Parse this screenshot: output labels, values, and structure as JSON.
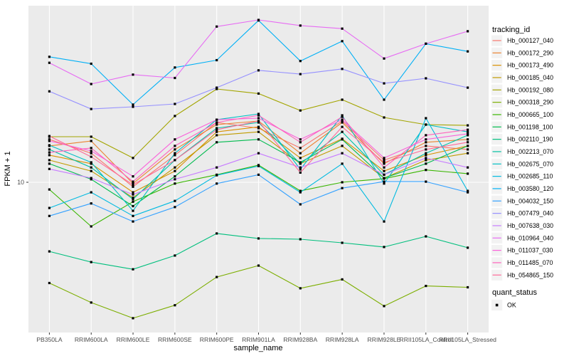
{
  "window": {
    "title": "FPKM expression line plot"
  },
  "chart_data": {
    "type": "line",
    "title": "",
    "xlabel": "sample_name",
    "ylabel": "FPKM + 1",
    "y_scale": "log10",
    "ybreaks": [
      10
    ],
    "y_tick_labels": [
      "10"
    ],
    "ylim": [
      0.93,
      174
    ],
    "grid": true,
    "panel_background": "#EBEBEB",
    "gridline_color": "#FFFFFF",
    "point_color": "#000000",
    "point_shape": "square",
    "categories": [
      "PB350LA",
      "RRIM600LA",
      "RRIM600LE",
      "RRIM600SE",
      "RRIM600PE",
      "RRIM901LA",
      "RRIM928BA",
      "RRIM928LA",
      "RRIM928LE",
      "RRII105LA_Control",
      "RRII105LA_Stressed"
    ],
    "legend": {
      "title": "tracking_id",
      "position": "right"
    },
    "legend2": {
      "title": "quant_status",
      "items": [
        {
          "label": "OK",
          "marker": "black-square",
          "color": "#000000"
        }
      ]
    },
    "series": [
      {
        "name": "Hb_000127_040",
        "color": "#F8766D",
        "values": [
          20.0,
          16.0,
          9.3,
          15.5,
          26.3,
          24.0,
          17.4,
          26.9,
          14.3,
          18.0,
          17.0
        ]
      },
      {
        "name": "Hb_000172_290",
        "color": "#EA8331",
        "values": [
          18.0,
          19.5,
          9.8,
          17.0,
          25.4,
          26.9,
          16.0,
          26.3,
          13.5,
          19.1,
          20.0
        ]
      },
      {
        "name": "Hb_000173_490",
        "color": "#D89000",
        "values": [
          15.5,
          13.5,
          8.5,
          12.0,
          22.6,
          24.5,
          14.8,
          20.2,
          12.0,
          15.5,
          18.0
        ]
      },
      {
        "name": "Hb_000185_040",
        "color": "#C09B00",
        "values": [
          14.3,
          12.0,
          7.8,
          12.7,
          21.4,
          22.6,
          13.5,
          18.0,
          10.7,
          14.3,
          16.0
        ]
      },
      {
        "name": "Hb_000192_080",
        "color": "#A3A500",
        "values": [
          20.9,
          20.9,
          14.8,
          29.2,
          45.2,
          42.0,
          31.9,
          38.0,
          28.5,
          25.4,
          25.1
        ]
      },
      {
        "name": "Hb_000318_290",
        "color": "#7CAE00",
        "values": [
          1.96,
          1.43,
          1.11,
          1.37,
          2.16,
          2.6,
          1.8,
          2.08,
          1.35,
          1.87,
          1.83
        ]
      },
      {
        "name": "Hb_000665_100",
        "color": "#39B600",
        "values": [
          8.9,
          4.9,
          7.3,
          9.8,
          11.3,
          13.2,
          8.7,
          10.0,
          10.6,
          12.2,
          11.5
        ]
      },
      {
        "name": "Hb_001198_100",
        "color": "#00BB4E",
        "values": [
          13.5,
          10.5,
          6.8,
          11.0,
          19.1,
          20.0,
          13.8,
          20.0,
          10.7,
          13.5,
          18.0
        ]
      },
      {
        "name": "Hb_002110_190",
        "color": "#00BF7D",
        "values": [
          3.27,
          2.75,
          2.45,
          3.06,
          4.37,
          4.03,
          3.98,
          3.76,
          3.51,
          4.17,
          3.47
        ]
      },
      {
        "name": "Hb_002213_070",
        "color": "#00C1A3",
        "values": [
          17.0,
          12.7,
          7.6,
          14.3,
          24.0,
          26.3,
          13.5,
          22.6,
          11.3,
          16.0,
          21.4
        ]
      },
      {
        "name": "Hb_002675_070",
        "color": "#00BFC4",
        "values": [
          18.2,
          13.8,
          6.3,
          16.0,
          27.5,
          30.2,
          12.3,
          29.5,
          9.8,
          25.4,
          22.6
        ]
      },
      {
        "name": "Hb_002685_110",
        "color": "#00BAE0",
        "values": [
          6.6,
          8.5,
          5.8,
          7.4,
          11.2,
          13.0,
          8.5,
          13.5,
          5.3,
          28.2,
          8.7
        ]
      },
      {
        "name": "Hb_003580_120",
        "color": "#00B0F6",
        "values": [
          76,
          68,
          35.1,
          64,
          72,
          137,
          71,
          98,
          38.0,
          94,
          83
        ]
      },
      {
        "name": "Hb_004032_150",
        "color": "#35A2FF",
        "values": [
          5.8,
          7.1,
          5.3,
          6.7,
          9.8,
          11.3,
          7.0,
          9.1,
          10.1,
          10.1,
          8.5
        ]
      },
      {
        "name": "Hb_007479_040",
        "color": "#9590FF",
        "values": [
          43.5,
          32.7,
          33.9,
          35.5,
          46.2,
          61.1,
          57.5,
          62.5,
          49.5,
          53.7,
          46.2
        ]
      },
      {
        "name": "Hb_007638_030",
        "color": "#C77CFF",
        "values": [
          12.4,
          10.7,
          8.2,
          10.5,
          12.7,
          16.0,
          12.7,
          16.0,
          11.3,
          14.8,
          12.7
        ]
      },
      {
        "name": "Hb_010964_040",
        "color": "#E76BF3",
        "values": [
          69,
          49,
          57,
          54,
          124,
          138,
          126,
          120,
          74,
          94,
          115
        ]
      },
      {
        "name": "Hb_011037_030",
        "color": "#FA62DB",
        "values": [
          19.5,
          16.6,
          11.0,
          20.0,
          27.5,
          28.2,
          20.0,
          27.5,
          14.8,
          20.0,
          21.9
        ]
      },
      {
        "name": "Hb_011485_070",
        "color": "#FF62BC",
        "values": [
          16.2,
          17.4,
          10.1,
          18.0,
          26.3,
          29.5,
          19.1,
          28.8,
          12.7,
          21.4,
          23.4
        ]
      },
      {
        "name": "Hb_054865_150",
        "color": "#FF6A98",
        "values": [
          21.1,
          15.1,
          9.6,
          14.3,
          23.4,
          26.9,
          11.7,
          24.5,
          13.8,
          17.0,
          19.1
        ]
      }
    ]
  }
}
